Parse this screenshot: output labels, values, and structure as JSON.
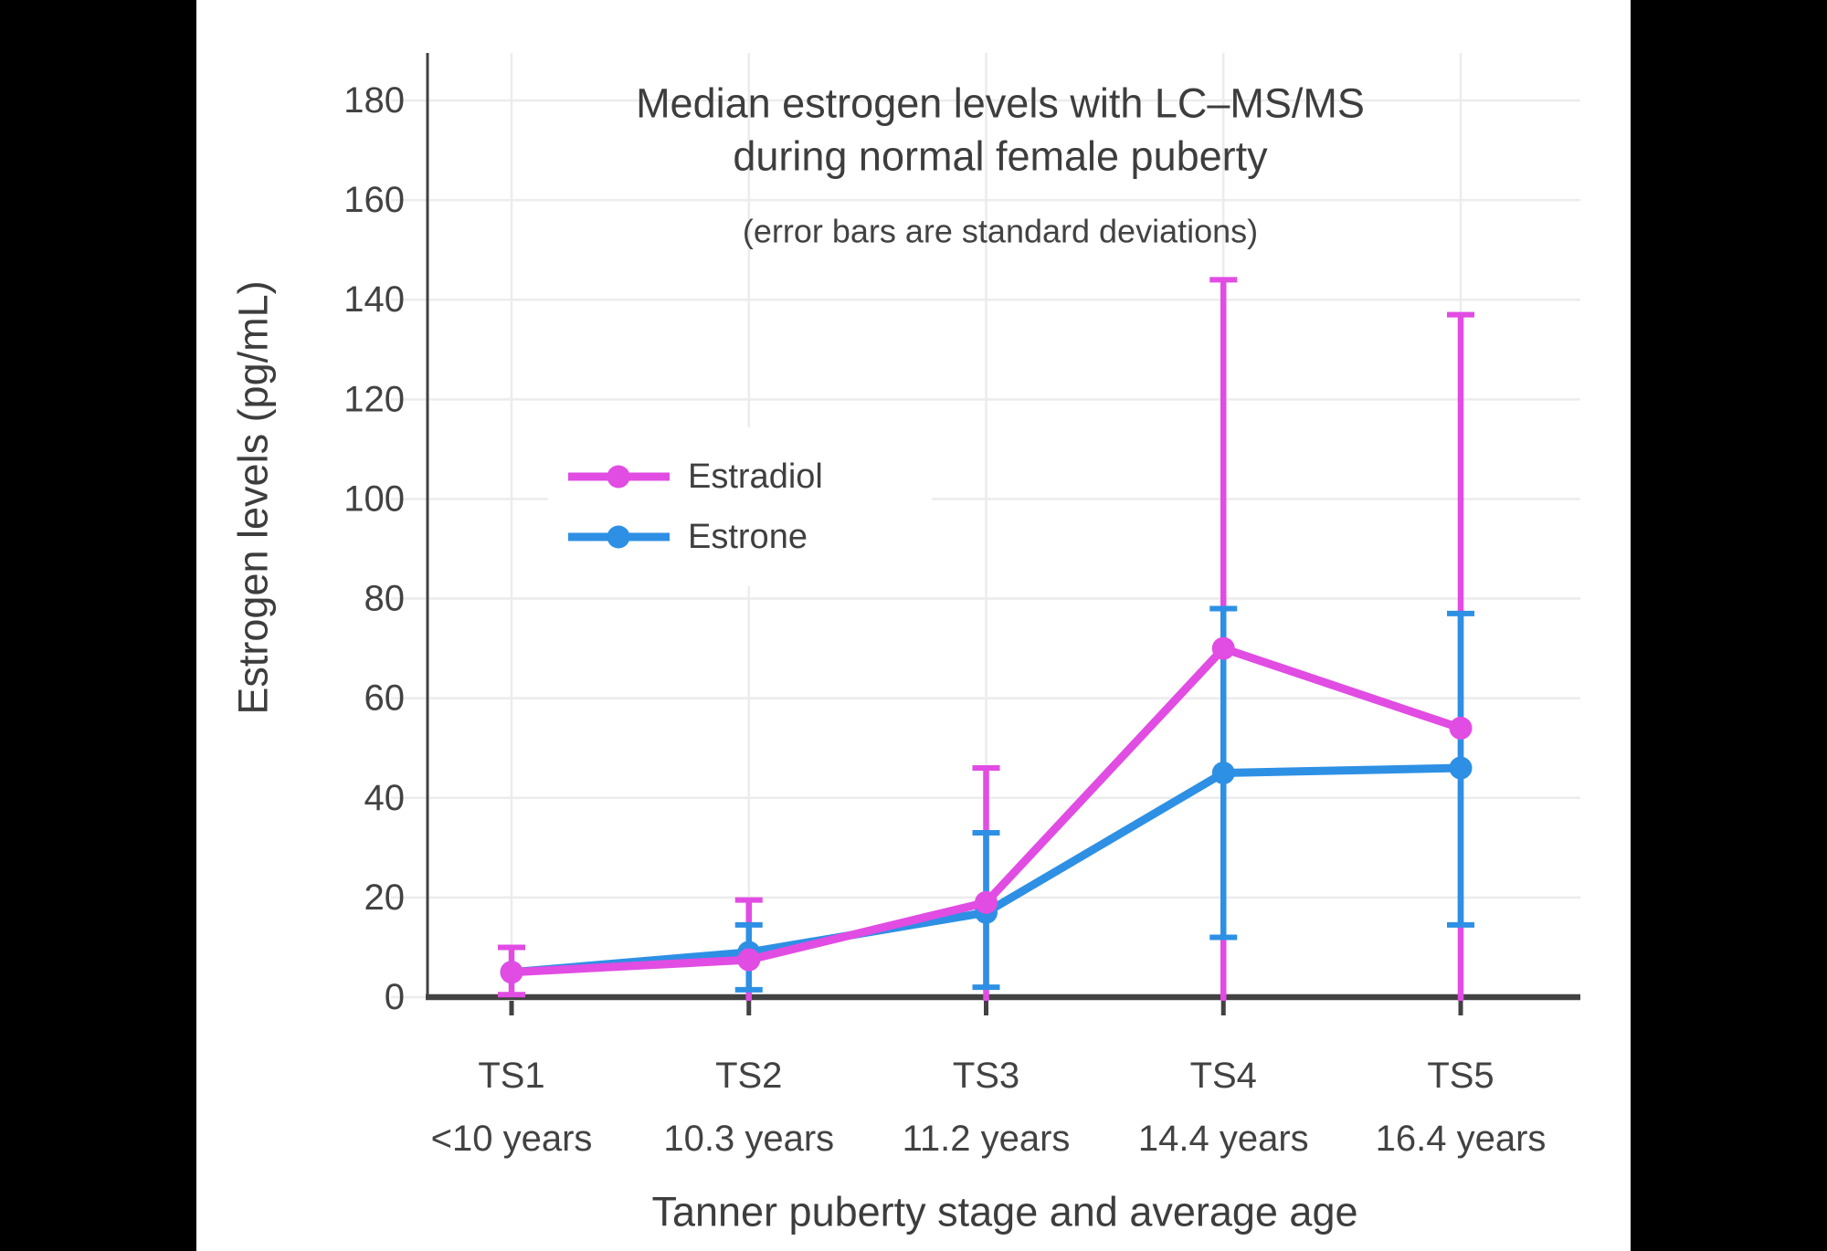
{
  "chart_data": {
    "type": "line",
    "title": "Median estrogen levels with LC–MS/MS during normal female puberty",
    "title_lines": [
      "Median estrogen levels with LC–MS/MS",
      "during normal female puberty"
    ],
    "subtitle": "(error bars are standard deviations)",
    "xlabel": "Tanner puberty stage and average age",
    "ylabel": "Estrogen levels (pg/mL)",
    "categories": [
      "TS1",
      "TS2",
      "TS3",
      "TS4",
      "TS5"
    ],
    "category_sublabels": [
      "<10 years",
      "10.3 years",
      "11.2 years",
      "14.4 years",
      "16.4 years"
    ],
    "yticks": [
      0,
      20,
      40,
      60,
      80,
      100,
      120,
      140,
      160,
      180
    ],
    "ylim": [
      0,
      190
    ],
    "grid": true,
    "legend_position": "inside-upper-left",
    "colors": {
      "background": "#ffffff",
      "letterbox": "#000000",
      "gridline": "#ececec",
      "axis": "#424242",
      "text": "#3f3f3f"
    },
    "series": [
      {
        "name": "Estradiol",
        "color": "#e14ce3",
        "values": [
          5,
          7.5,
          19,
          70,
          54
        ],
        "error_high": [
          10,
          19.5,
          46,
          144,
          137
        ],
        "error_low": [
          0.5,
          0,
          0,
          0,
          0
        ]
      },
      {
        "name": "Estrone",
        "color": "#2e90e4",
        "values": [
          5,
          9,
          17,
          45,
          46
        ],
        "error_high": [
          null,
          14.5,
          33,
          78,
          77
        ],
        "error_low": [
          null,
          1.5,
          2,
          12,
          14.5
        ]
      }
    ]
  }
}
